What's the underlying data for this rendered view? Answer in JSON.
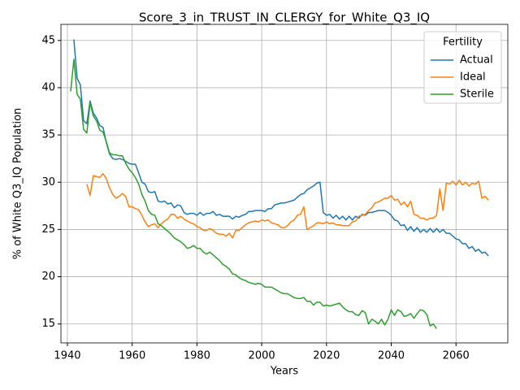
{
  "chart_data": {
    "type": "line",
    "title": "Score_3_in_TRUST_IN_CLERGY_for_White_Q3_IQ",
    "xlabel": "Years",
    "ylabel": "% of White Q3_IQ Population",
    "legend_title": "Fertility",
    "legend": "upper right",
    "grid": true,
    "xlim": [
      1938,
      2076
    ],
    "ylim": [
      13,
      46.7
    ],
    "xticks": [
      1940,
      1960,
      1980,
      2000,
      2020,
      2040,
      2060
    ],
    "yticks": [
      15,
      20,
      25,
      30,
      35,
      40,
      45
    ],
    "x": [
      1941,
      1942,
      1943,
      1944,
      1945,
      1946,
      1947,
      1948,
      1949,
      1950,
      1951,
      1952,
      1953,
      1954,
      1955,
      1956,
      1957,
      1958,
      1959,
      1960,
      1961,
      1962,
      1963,
      1964,
      1965,
      1966,
      1967,
      1968,
      1969,
      1970,
      1971,
      1972,
      1973,
      1974,
      1975,
      1976,
      1977,
      1978,
      1979,
      1980,
      1981,
      1982,
      1983,
      1984,
      1985,
      1986,
      1987,
      1988,
      1989,
      1990,
      1991,
      1992,
      1993,
      1994,
      1995,
      1996,
      1997,
      1998,
      1999,
      2000,
      2001,
      2002,
      2003,
      2004,
      2005,
      2006,
      2007,
      2008,
      2009,
      2010,
      2011,
      2012,
      2013,
      2014,
      2015,
      2016,
      2017,
      2018,
      2019,
      2020,
      2021,
      2022,
      2023,
      2024,
      2025,
      2026,
      2027,
      2028,
      2029,
      2030,
      2031,
      2032,
      2033,
      2034,
      2035,
      2036,
      2037,
      2038,
      2039,
      2040,
      2041,
      2042,
      2043,
      2044,
      2045,
      2046,
      2047,
      2048,
      2049,
      2050,
      2051,
      2052,
      2053,
      2054,
      2055,
      2056,
      2057,
      2058,
      2059,
      2060,
      2061,
      2062,
      2063,
      2064,
      2065,
      2066,
      2067,
      2068,
      2069,
      2070
    ],
    "series": [
      {
        "name": "Actual",
        "color": "#1f77b4",
        "values": [
          null,
          45.1,
          41,
          40.3,
          36.5,
          36.2,
          38.6,
          37.3,
          36.8,
          36.0,
          35.8,
          34.2,
          33.0,
          32.5,
          32.4,
          32.5,
          32.4,
          32.2,
          32.0,
          31.9,
          31.9,
          31.0,
          30.0,
          29.8,
          29.0,
          28.9,
          29.0,
          28.0,
          27.9,
          28.0,
          27.7,
          27.8,
          27.3,
          27.6,
          27.5,
          26.8,
          26.6,
          26.7,
          26.7,
          26.5,
          26.8,
          26.5,
          26.7,
          26.7,
          26.9,
          26.5,
          26.6,
          26.4,
          26.4,
          26.4,
          26.1,
          26.4,
          26.3,
          26.5,
          26.6,
          26.9,
          26.9,
          27.0,
          27.0,
          27.0,
          26.9,
          27.2,
          27.2,
          27.6,
          27.7,
          27.8,
          27.8,
          27.9,
          28.0,
          28.1,
          28.4,
          28.7,
          28.8,
          29.2,
          29.4,
          29.6,
          29.9,
          30.0,
          26.8,
          26.5,
          26.6,
          26.2,
          26.5,
          26.1,
          26.4,
          26.0,
          26.4,
          26.0,
          26.4,
          26.2,
          26.6,
          26.5,
          26.8,
          26.8,
          26.9,
          27.0,
          27.0,
          27.0,
          26.8,
          26.5,
          26.0,
          25.9,
          25.4,
          25.5,
          24.9,
          25.3,
          24.8,
          25.2,
          24.7,
          25.0,
          24.7,
          25.1,
          24.7,
          25.1,
          24.7,
          25.0,
          24.6,
          24.6,
          24.3,
          24.0,
          23.9,
          23.5,
          23.5,
          23.0,
          23.2,
          22.7,
          22.9,
          22.5,
          22.6,
          22.2
        ]
      },
      {
        "name": "Ideal",
        "color": "#ff7f0e",
        "values": [
          null,
          null,
          null,
          null,
          null,
          29.8,
          28.6,
          30.7,
          30.6,
          30.5,
          30.9,
          30.4,
          29.4,
          28.7,
          28.3,
          28.5,
          28.8,
          28.5,
          27.4,
          27.4,
          27.2,
          27.1,
          26.5,
          25.8,
          25.3,
          25.5,
          25.6,
          25.2,
          25.6,
          25.9,
          26.1,
          26.6,
          26.6,
          26.2,
          26.4,
          26.1,
          25.9,
          25.7,
          25.6,
          25.3,
          25.2,
          24.9,
          24.9,
          25.1,
          24.9,
          24.6,
          24.5,
          24.5,
          24.3,
          24.6,
          24.1,
          24.9,
          24.9,
          25.2,
          25.5,
          25.7,
          25.8,
          25.9,
          25.8,
          26.0,
          25.9,
          26.0,
          25.7,
          25.6,
          25.5,
          25.2,
          25.2,
          25.4,
          25.8,
          26.0,
          26.5,
          26.6,
          27.4,
          25.0,
          25.2,
          25.4,
          25.7,
          25.7,
          25.6,
          25.8,
          25.6,
          25.7,
          25.5,
          25.5,
          25.4,
          25.4,
          25.4,
          25.8,
          25.9,
          26.4,
          26.5,
          26.6,
          27.0,
          27.3,
          27.8,
          27.9,
          28.1,
          28.3,
          28.3,
          28.6,
          28.1,
          28.2,
          27.6,
          27.9,
          27.4,
          28.0,
          26.6,
          26.5,
          26.2,
          26.2,
          26.0,
          26.2,
          26.2,
          26.5,
          29.3,
          27.0,
          29.9,
          29.8,
          30.1,
          29.7,
          30.2,
          29.7,
          30.0,
          29.6,
          29.9,
          29.8,
          30.1,
          28.3,
          28.5,
          28.1
        ]
      },
      {
        "name": "Sterile",
        "color": "#2ca02c",
        "values": [
          39.6,
          43.0,
          39.3,
          38.8,
          35.6,
          35.2,
          38.4,
          37.0,
          36.5,
          35.5,
          35.3,
          34.3,
          33.1,
          32.9,
          32.9,
          32.8,
          32.8,
          32.0,
          31.4,
          31.0,
          30.5,
          29.8,
          28.7,
          28.0,
          27.0,
          26.6,
          26.5,
          25.6,
          25.4,
          25.1,
          24.8,
          24.5,
          24.1,
          23.9,
          23.7,
          23.4,
          23.0,
          23.1,
          23.3,
          23.0,
          23.0,
          22.6,
          22.4,
          22.6,
          22.3,
          22.0,
          21.7,
          21.3,
          21.1,
          20.8,
          20.3,
          20.2,
          19.9,
          19.7,
          19.6,
          19.4,
          19.3,
          19.2,
          19.3,
          19.2,
          18.9,
          18.9,
          18.9,
          18.7,
          18.5,
          18.3,
          18.2,
          18.2,
          18.0,
          17.8,
          17.7,
          17.7,
          17.8,
          17.4,
          17.4,
          17.0,
          17.3,
          17.3,
          16.9,
          17.0,
          16.9,
          17.0,
          17.1,
          17.2,
          16.8,
          16.5,
          16.3,
          16.3,
          16.0,
          15.9,
          16.4,
          16.2,
          15.0,
          15.5,
          15.3,
          15.0,
          15.5,
          14.9,
          15.5,
          16.5,
          15.9,
          16.5,
          16.3,
          15.8,
          15.9,
          16.1,
          15.6,
          16.1,
          16.5,
          16.4,
          16.0,
          14.8,
          15.0,
          14.5,
          null,
          null,
          null,
          null,
          null,
          null,
          null,
          null,
          null,
          null,
          null,
          null,
          null,
          null,
          null,
          null
        ]
      }
    ]
  }
}
